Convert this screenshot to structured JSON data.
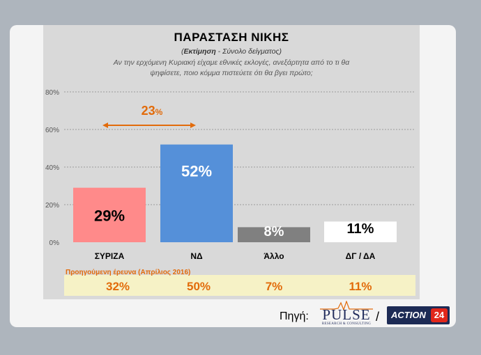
{
  "chart_data": {
    "type": "bar",
    "title": "ΠΑΡΑΣΤΑΣΗ ΝΙΚΗΣ",
    "subtitle_bold": "Εκτίμηση",
    "subtitle_rest": " - Σύνολο δείγματος)",
    "subtitle_open": "(",
    "question_line1": "Αν την ερχόμενη Κυριακή είχαμε εθνικές εκλογές,  ανεξάρτητα από το τι θα",
    "question_line2": "ψηφίσετε, ποιο κόμμα πιστεύετε ότι θα βγει πρώτο;",
    "categories": [
      "ΣΥΡΙΖΑ",
      "ΝΔ",
      "Άλλο",
      "ΔΓ / ΔΑ"
    ],
    "values": [
      29,
      52,
      8,
      11
    ],
    "value_labels": [
      "29%",
      "52%",
      "8%",
      "11%"
    ],
    "bar_colors": [
      "#ff8a8a",
      "#5590d9",
      "#808080",
      "#ffffff"
    ],
    "label_colors": [
      "#000000",
      "#ffffff",
      "#ffffff",
      "#000000"
    ],
    "ylim": [
      0,
      80
    ],
    "yticks": [
      0,
      20,
      40,
      60,
      80
    ],
    "ytick_labels": [
      "0%",
      "20%",
      "40%",
      "60%",
      "80%"
    ],
    "grid": true,
    "difference": {
      "value": 23,
      "number": "23",
      "unit": "%",
      "color": "#e26b0a"
    },
    "previous_survey": {
      "title": "Προηγούμενη έρευνα (Απρίλιος 2016)",
      "values": [
        32,
        50,
        7,
        11
      ],
      "labels": [
        "32%",
        "50%",
        "7%",
        "11%"
      ],
      "color": "#e26b0a"
    }
  },
  "footer": {
    "source_label": "Πηγή:",
    "pulse_word": "PULSE",
    "pulse_sub": "RESEARCH & CONSULTING",
    "slash": "/",
    "action_word": "ACTION",
    "action_num": "24"
  }
}
